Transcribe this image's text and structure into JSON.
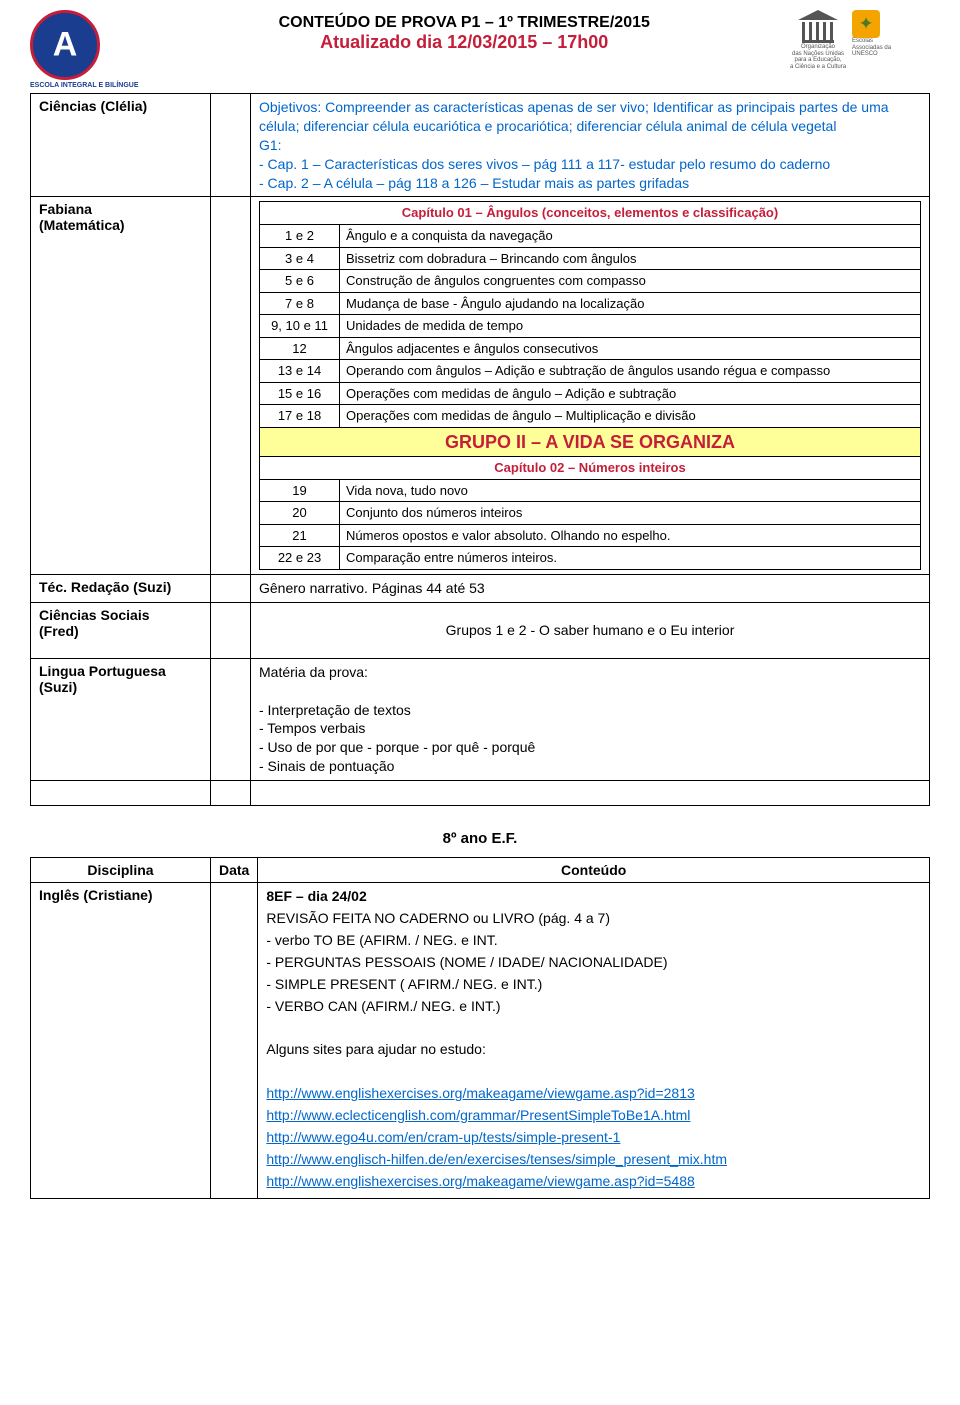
{
  "header": {
    "logo_caption": "ESCOLA INTEGRAL E BILÍNGUE",
    "title1": "CONTEÚDO DE PROVA P1 – 1º TRIMESTRE/2015",
    "title2": "Atualizado dia 12/03/2015 – 17h00",
    "unesco_lines": "Organização\ndas Nações Unidas\npara a Educação,\na Ciência e a Cultura",
    "escolas_lines": "Escolas\nAssociadas da\nUNESCO"
  },
  "rows1": [
    {
      "subject": "Ciências (Clélia)",
      "content_html": "Objetivos: Compreender as características apenas de ser vivo; Identificar as principais partes de uma célula; diferenciar célula eucariótica e procariótica; diferenciar célula animal de célula vegetal\nG1:\n- Cap. 1 – Características dos seres vivos – pág 111 a 117- estudar pelo resumo do caderno\n- Cap. 2 – A célula – pág 118 a 126 – Estudar mais as partes grifadas",
      "blue": true
    }
  ],
  "fabiana": {
    "subject": "Fabiana\n(Matemática)",
    "chapter1": "Capítulo 01 – Ângulos (conceitos, elementos e classificação)",
    "rows": [
      {
        "n": "1 e 2",
        "t": "Ângulo e a conquista da navegação"
      },
      {
        "n": "3 e 4",
        "t": "Bissetriz com dobradura – Brincando com ângulos"
      },
      {
        "n": "5 e 6",
        "t": "Construção de ângulos congruentes com compasso"
      },
      {
        "n": "7 e 8",
        "t": "Mudança de base - Ângulo ajudando na localização"
      },
      {
        "n": "9, 10 e 11",
        "t": "Unidades de medida de tempo"
      },
      {
        "n": "12",
        "t": "Ângulos adjacentes e ângulos consecutivos"
      },
      {
        "n": "13 e 14",
        "t": "Operando com ângulos – Adição e subtração de ângulos usando régua e compasso"
      },
      {
        "n": "15 e 16",
        "t": "Operações com medidas de ângulo  – Adição e subtração"
      },
      {
        "n": "17 e 18",
        "t": "Operações com medidas de ângulo  – Multiplicação e divisão"
      }
    ],
    "grupo": "GRUPO II – A VIDA SE ORGANIZA",
    "chapter2": "Capítulo 02 – Números inteiros",
    "rows2": [
      {
        "n": "19",
        "t": "Vida nova, tudo novo"
      },
      {
        "n": "20",
        "t": "Conjunto dos números inteiros"
      },
      {
        "n": "21",
        "t": "Números opostos e valor absoluto. Olhando no espelho."
      },
      {
        "n": "22 e 23",
        "t": "Comparação entre  números inteiros."
      }
    ]
  },
  "rows2": [
    {
      "subject": "Téc. Redação (Suzi)",
      "content": "Gênero narrativo. Páginas 44 até 53"
    },
    {
      "subject": "Ciências Sociais\n(Fred)",
      "content": "Grupos 1 e 2 - O saber humano e o Eu interior",
      "center": true
    },
    {
      "subject": "Lingua Portuguesa\n(Suzi)",
      "content": "Matéria da prova:\n\n- Interpretação de textos\n- Tempos verbais\n- Uso de por que - porque - por quê - porquê\n- Sinais de pontuação"
    }
  ],
  "section2": {
    "title": "8º ano E.F.",
    "head": {
      "c1": "Disciplina",
      "c2": "Data",
      "c3": "Conteúdo"
    },
    "subject": "Inglês (Cristiane)",
    "lines": [
      "8EF – dia 24/02",
      "REVISÃO FEITA NO CADERNO ou LIVRO (pág. 4 a 7)",
      "- verbo TO BE (AFIRM. / NEG. e INT.",
      "- PERGUNTAS PESSOAIS (NOME / IDADE/ NACIONALIDADE)",
      "- SIMPLE PRESENT ( AFIRM./ NEG. e INT.)",
      "- VERBO CAN (AFIRM./ NEG. e INT.)",
      "",
      "Alguns sites para ajudar no estudo:",
      ""
    ],
    "links": [
      "http://www.englishexercises.org/makeagame/viewgame.asp?id=2813",
      "http://www.eclecticenglish.com/grammar/PresentSimpleToBe1A.html",
      "http://www.ego4u.com/en/cram-up/tests/simple-present-1",
      "http://www.englisch-hilfen.de/en/exercises/tenses/simple_present_mix.htm",
      "http://www.englishexercises.org/makeagame/viewgame.asp?id=5488"
    ]
  },
  "labels": {
    "bold_prefix_8ef": "8EF – dia 24/02"
  }
}
